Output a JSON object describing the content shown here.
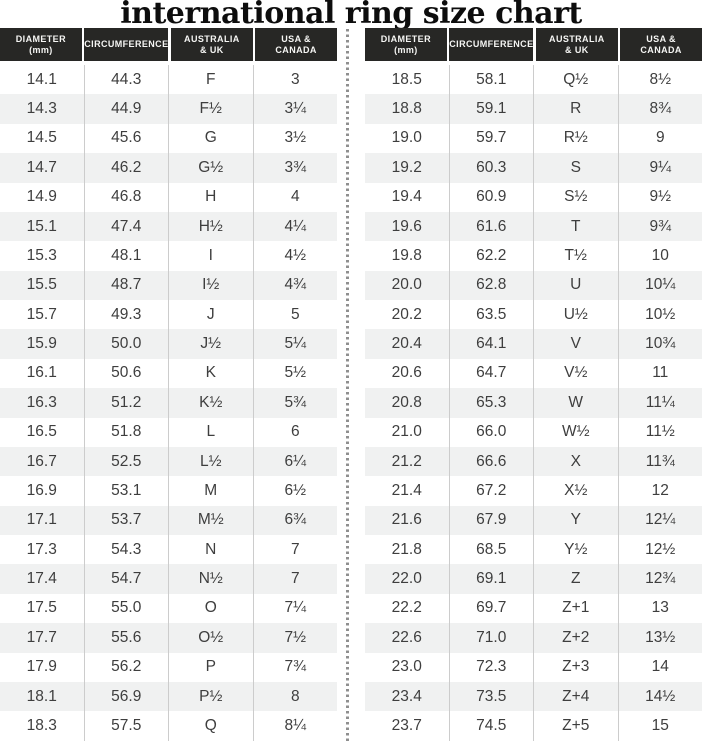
{
  "title": "international ring size chart",
  "header_labels": [
    "DIAMETER\n(mm)",
    "CIRCUMFERENCE",
    "AUSTRALIA\n& UK",
    "USA &\nCANADA"
  ],
  "colors": {
    "header_bg": "#272725",
    "header_text": "#f6f6f4",
    "row_alt_bg": "#f0f1f1",
    "body_text": "#3e3e3e",
    "separator": "#cccccc",
    "divider_dot": "#8f8f8f",
    "title_color": "#0d0d0d"
  },
  "chart_data": {
    "type": "table",
    "title": "international ring size chart",
    "columns": [
      "Diameter (mm)",
      "Circumference",
      "Australia & UK",
      "USA & Canada"
    ],
    "left_table_rows": [
      [
        "14.1",
        "44.3",
        "F",
        "3"
      ],
      [
        "14.3",
        "44.9",
        "F½",
        "3¼"
      ],
      [
        "14.5",
        "45.6",
        "G",
        "3½"
      ],
      [
        "14.7",
        "46.2",
        "G½",
        "3¾"
      ],
      [
        "14.9",
        "46.8",
        "H",
        "4"
      ],
      [
        "15.1",
        "47.4",
        "H½",
        "4¼"
      ],
      [
        "15.3",
        "48.1",
        "I",
        "4½"
      ],
      [
        "15.5",
        "48.7",
        "I½",
        "4¾"
      ],
      [
        "15.7",
        "49.3",
        "J",
        "5"
      ],
      [
        "15.9",
        "50.0",
        "J½",
        "5¼"
      ],
      [
        "16.1",
        "50.6",
        "K",
        "5½"
      ],
      [
        "16.3",
        "51.2",
        "K½",
        "5¾"
      ],
      [
        "16.5",
        "51.8",
        "L",
        "6"
      ],
      [
        "16.7",
        "52.5",
        "L½",
        "6¼"
      ],
      [
        "16.9",
        "53.1",
        "M",
        "6½"
      ],
      [
        "17.1",
        "53.7",
        "M½",
        "6¾"
      ],
      [
        "17.3",
        "54.3",
        "N",
        "7"
      ],
      [
        "17.4",
        "54.7",
        "N½",
        "7"
      ],
      [
        "17.5",
        "55.0",
        "O",
        "7¼"
      ],
      [
        "17.7",
        "55.6",
        "O½",
        "7½"
      ],
      [
        "17.9",
        "56.2",
        "P",
        "7¾"
      ],
      [
        "18.1",
        "56.9",
        "P½",
        "8"
      ],
      [
        "18.3",
        "57.5",
        "Q",
        "8¼"
      ]
    ],
    "right_table_rows": [
      [
        "18.5",
        "58.1",
        "Q½",
        "8½"
      ],
      [
        "18.8",
        "59.1",
        "R",
        "8¾"
      ],
      [
        "19.0",
        "59.7",
        "R½",
        "9"
      ],
      [
        "19.2",
        "60.3",
        "S",
        "9¼"
      ],
      [
        "19.4",
        "60.9",
        "S½",
        "9½"
      ],
      [
        "19.6",
        "61.6",
        "T",
        "9¾"
      ],
      [
        "19.8",
        "62.2",
        "T½",
        "10"
      ],
      [
        "20.0",
        "62.8",
        "U",
        "10¼"
      ],
      [
        "20.2",
        "63.5",
        "U½",
        "10½"
      ],
      [
        "20.4",
        "64.1",
        "V",
        "10¾"
      ],
      [
        "20.6",
        "64.7",
        "V½",
        "11"
      ],
      [
        "20.8",
        "65.3",
        "W",
        "11¼"
      ],
      [
        "21.0",
        "66.0",
        "W½",
        "11½"
      ],
      [
        "21.2",
        "66.6",
        "X",
        "11¾"
      ],
      [
        "21.4",
        "67.2",
        "X½",
        "12"
      ],
      [
        "21.6",
        "67.9",
        "Y",
        "12¼"
      ],
      [
        "21.8",
        "68.5",
        "Y½",
        "12½"
      ],
      [
        "22.0",
        "69.1",
        "Z",
        "12¾"
      ],
      [
        "22.2",
        "69.7",
        "Z+1",
        "13"
      ],
      [
        "22.6",
        "71.0",
        "Z+2",
        "13½"
      ],
      [
        "23.0",
        "72.3",
        "Z+3",
        "14"
      ],
      [
        "23.4",
        "73.5",
        "Z+4",
        "14½"
      ],
      [
        "23.7",
        "74.5",
        "Z+5",
        "15"
      ]
    ]
  }
}
